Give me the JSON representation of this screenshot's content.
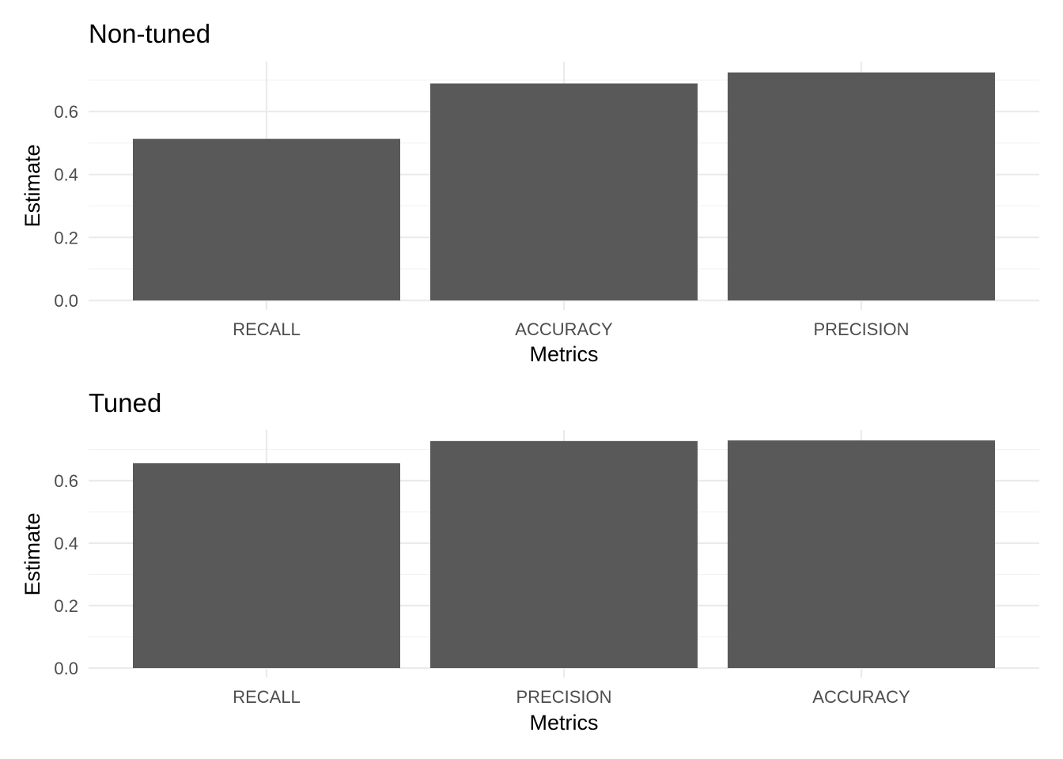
{
  "chart_data": [
    {
      "type": "bar",
      "title": "Non-tuned",
      "xlabel": "Metrics",
      "ylabel": "Estimate",
      "categories": [
        "RECALL",
        "ACCURACY",
        "PRECISION"
      ],
      "values": [
        0.513,
        0.689,
        0.724
      ],
      "ylim": [
        0,
        0.75
      ],
      "yticks": [
        "0.0",
        "0.2",
        "0.4",
        "0.6"
      ],
      "grid": true,
      "bar_color": "#595959"
    },
    {
      "type": "bar",
      "title": "Tuned",
      "xlabel": "Metrics",
      "ylabel": "Estimate",
      "categories": [
        "RECALL",
        "PRECISION",
        "ACCURACY"
      ],
      "values": [
        0.656,
        0.727,
        0.729
      ],
      "ylim": [
        0,
        0.75
      ],
      "yticks": [
        "0.0",
        "0.2",
        "0.4",
        "0.6"
      ],
      "grid": true,
      "bar_color": "#595959"
    }
  ]
}
